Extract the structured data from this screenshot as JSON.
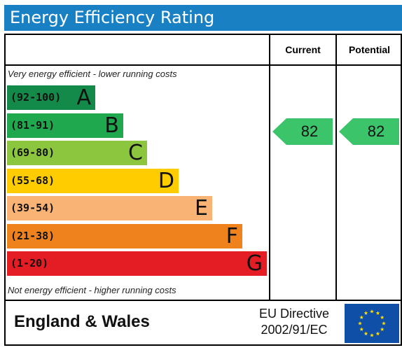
{
  "header": {
    "title": "Energy Efficiency Rating"
  },
  "columns": {
    "current": "Current",
    "potential": "Potential"
  },
  "notes": {
    "top": "Very energy efficient - lower running costs",
    "bottom": "Not energy efficient - higher running costs"
  },
  "chart_data": {
    "type": "bar",
    "title": "Energy Efficiency Rating",
    "categories": [
      "(92-100)",
      "(81-91)",
      "(69-80)",
      "(55-68)",
      "(39-54)",
      "(21-38)",
      "(1-20)"
    ],
    "bands": [
      {
        "letter": "A",
        "range": "(92-100)",
        "min": 92,
        "max": 100,
        "color": "#138a49"
      },
      {
        "letter": "B",
        "range": "(81-91)",
        "min": 81,
        "max": 91,
        "color": "#20a84f"
      },
      {
        "letter": "C",
        "range": "(69-80)",
        "min": 69,
        "max": 80,
        "color": "#8cc63f"
      },
      {
        "letter": "D",
        "range": "(55-68)",
        "min": 55,
        "max": 68,
        "color": "#ffcc00"
      },
      {
        "letter": "E",
        "range": "(39-54)",
        "min": 39,
        "max": 54,
        "color": "#f9b375"
      },
      {
        "letter": "F",
        "range": "(21-38)",
        "min": 21,
        "max": 38,
        "color": "#f0821e"
      },
      {
        "letter": "G",
        "range": "(1-20)",
        "min": 1,
        "max": 20,
        "color": "#e31d23"
      }
    ],
    "ratings": {
      "current": {
        "value": 82,
        "band": "B",
        "color": "#3cc46a"
      },
      "potential": {
        "value": 82,
        "band": "B",
        "color": "#3cc46a"
      }
    }
  },
  "footer": {
    "region": "England & Wales",
    "directive_line1": "EU Directive",
    "directive_line2": "2002/91/EC"
  },
  "flag": {
    "background": "#0f4fa8",
    "stars": "#ffdd00",
    "icon": "eu-flag-icon"
  }
}
